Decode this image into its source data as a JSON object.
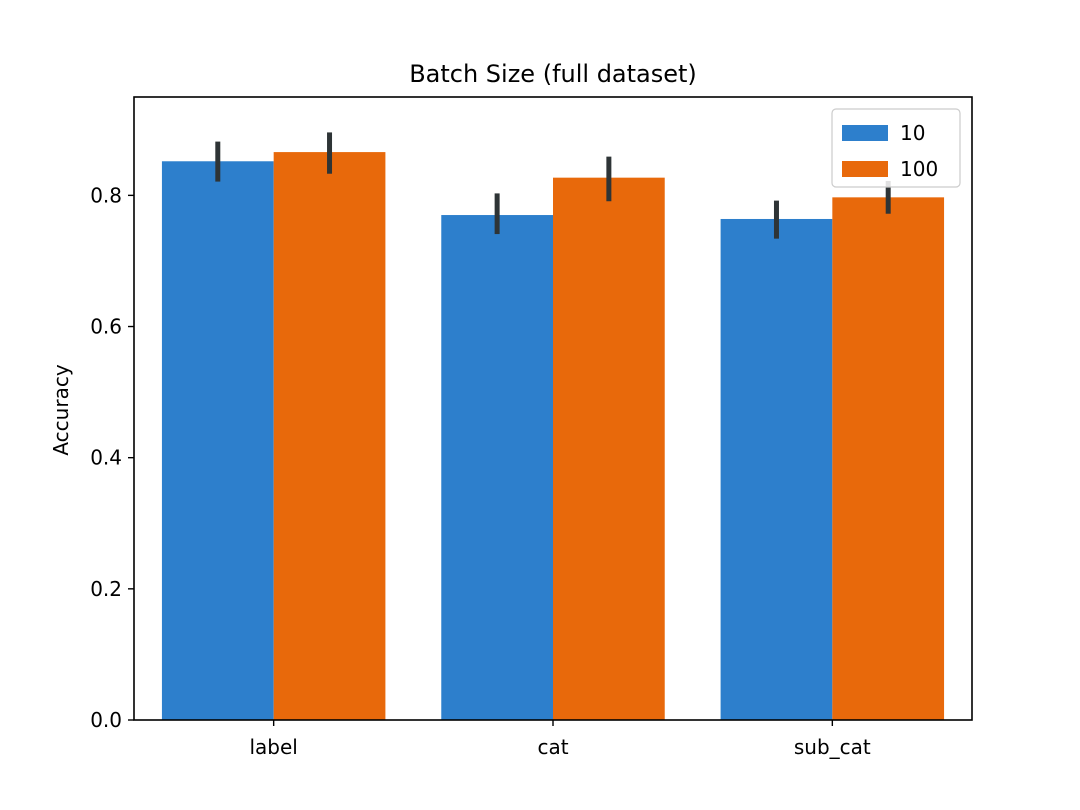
{
  "chart_data": {
    "type": "bar",
    "title": "Batch Size (full dataset)",
    "xlabel": "",
    "ylabel": "Accuracy",
    "categories": [
      "label",
      "cat",
      "sub_cat"
    ],
    "ylim": [
      0,
      0.95
    ],
    "yticks": [
      0.0,
      0.2,
      0.4,
      0.6,
      0.8
    ],
    "ytick_labels": [
      "0.0",
      "0.2",
      "0.4",
      "0.6",
      "0.8"
    ],
    "series": [
      {
        "name": "10",
        "color": "#2d7fcc",
        "values": [
          0.852,
          0.77,
          0.764
        ],
        "err_low": [
          0.821,
          0.741,
          0.734
        ],
        "err_high": [
          0.882,
          0.803,
          0.792
        ]
      },
      {
        "name": "100",
        "color": "#e8690b",
        "values": [
          0.866,
          0.827,
          0.797
        ],
        "err_low": [
          0.833,
          0.791,
          0.772
        ],
        "err_high": [
          0.896,
          0.859,
          0.822
        ]
      }
    ],
    "legend_position": "top-right",
    "grid": false,
    "errorbar_color": "#2e3436"
  }
}
